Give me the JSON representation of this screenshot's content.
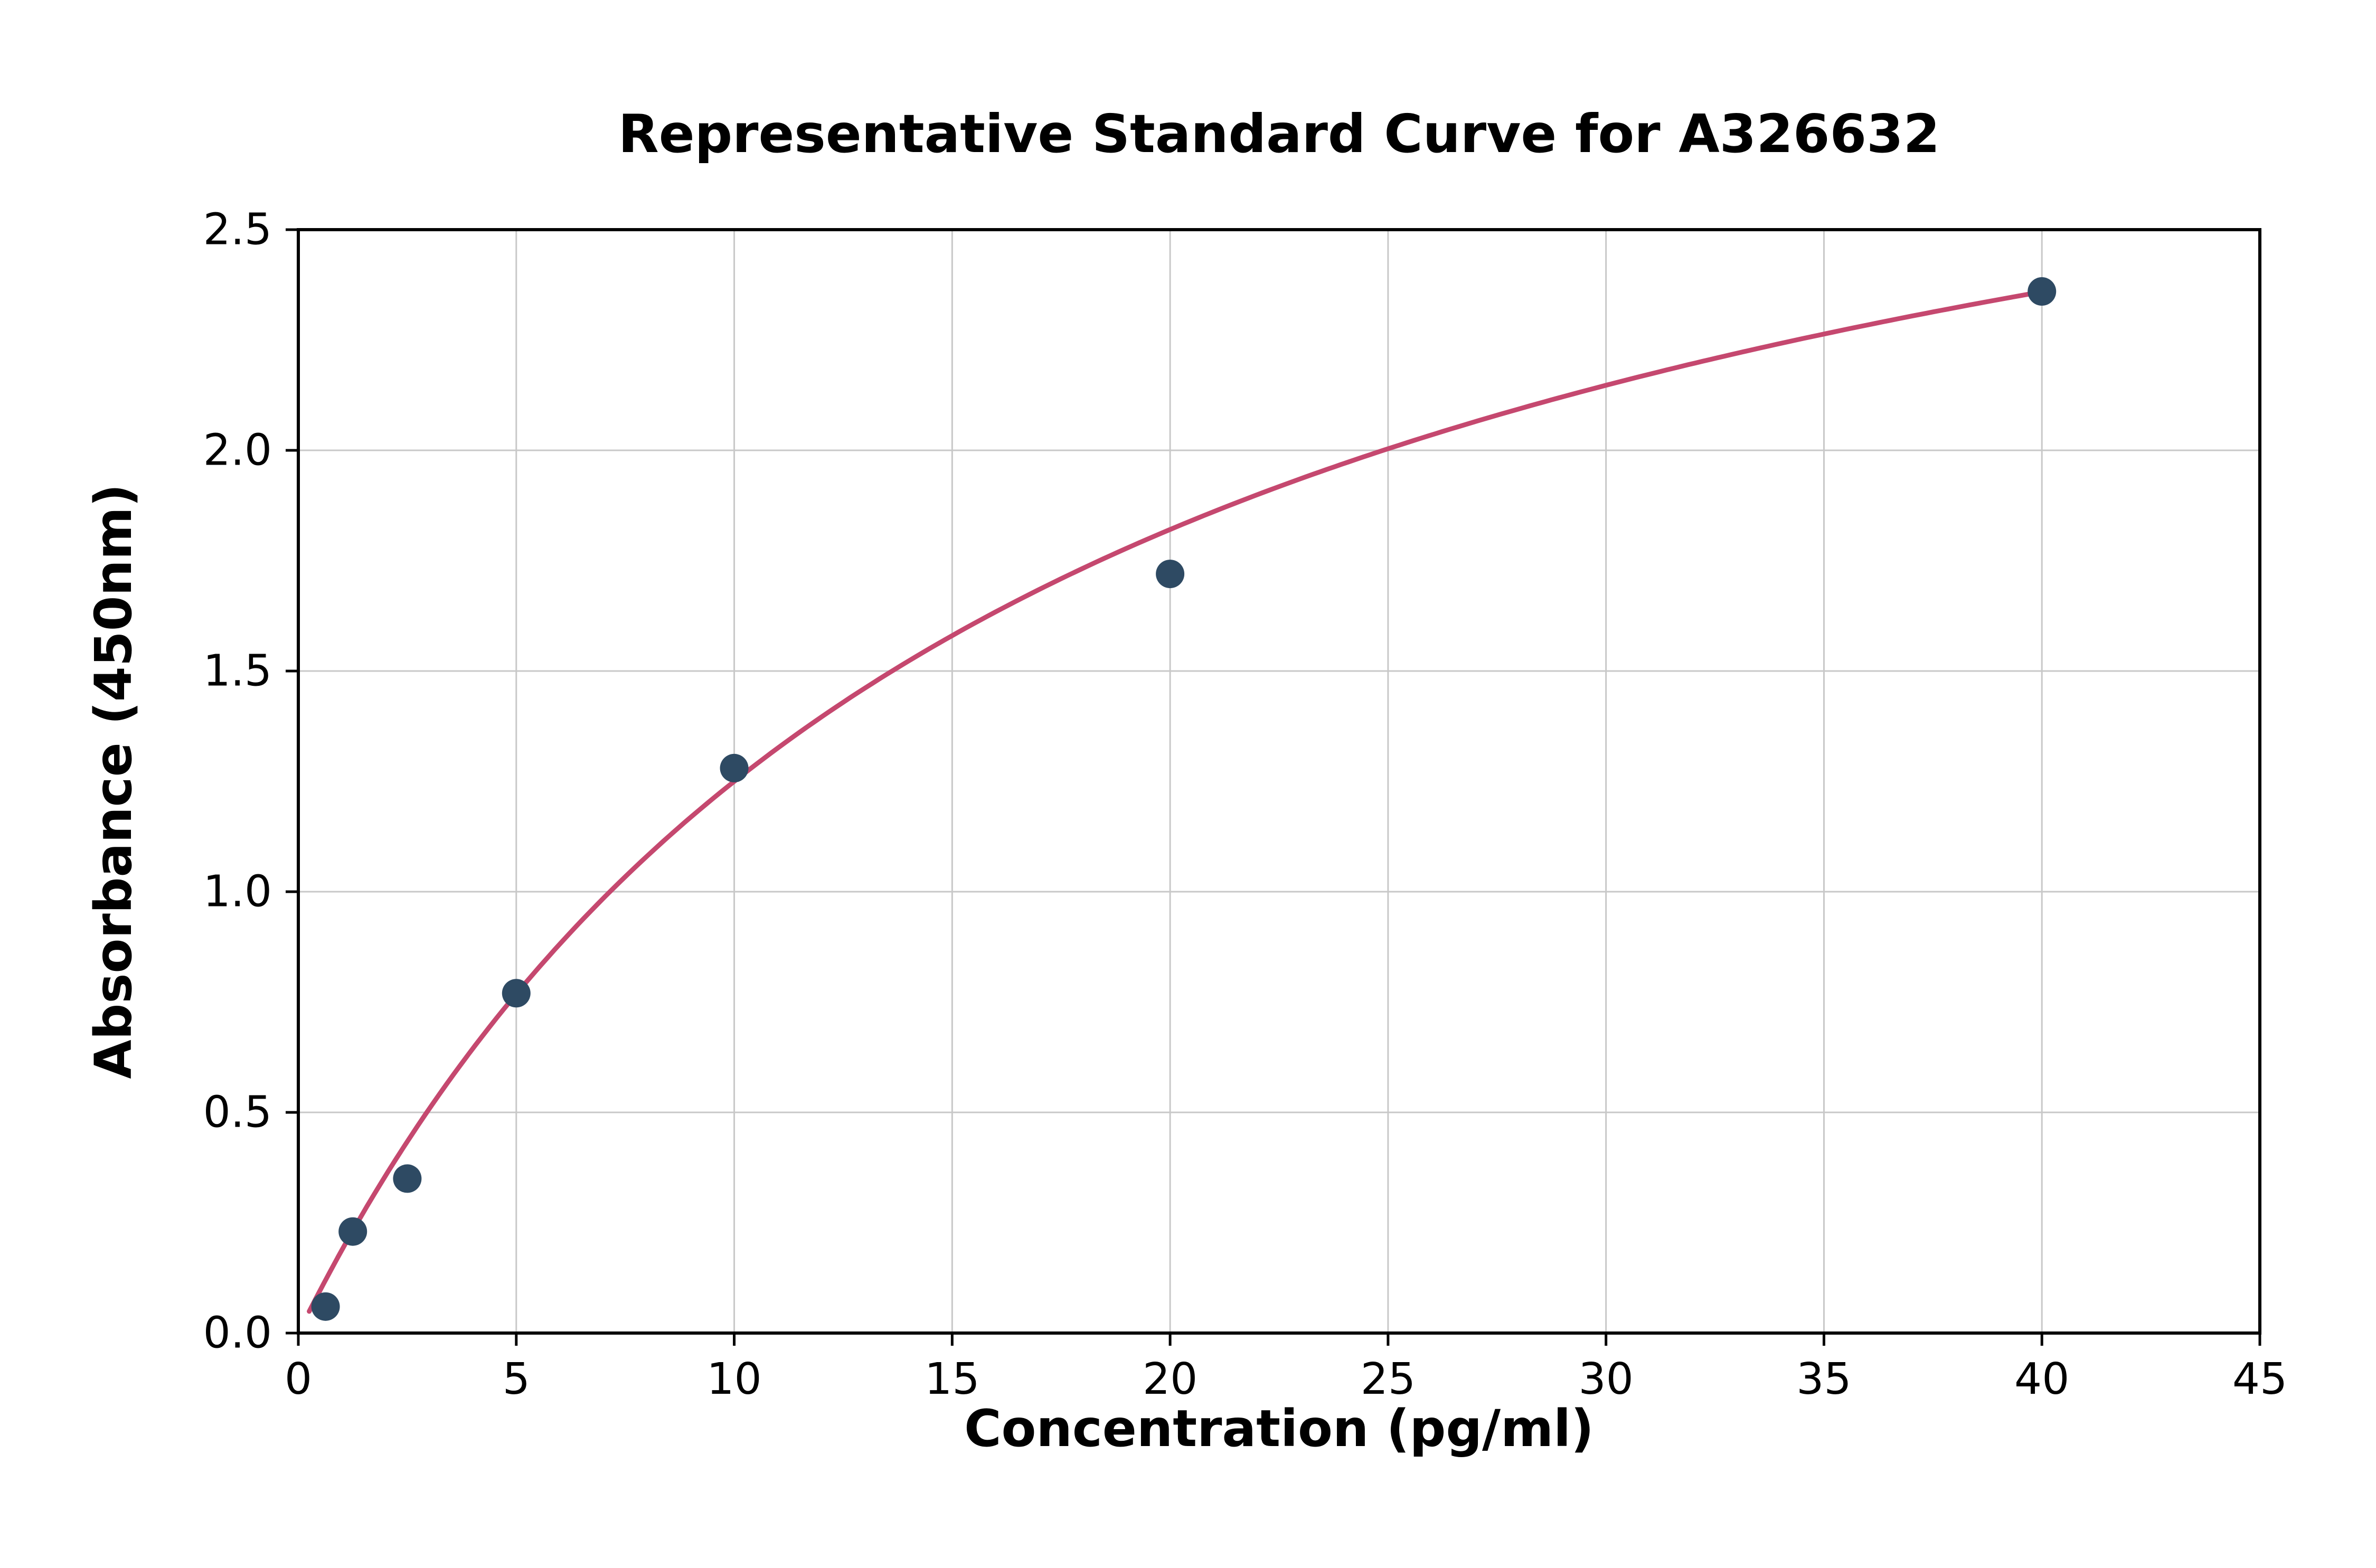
{
  "chart_data": {
    "type": "scatter",
    "title": "Representative Standard Curve for A326632",
    "xlabel": "Concentration (pg/ml)",
    "ylabel": "Absorbance (450nm)",
    "xlim": [
      0,
      45
    ],
    "ylim": [
      0,
      2.5
    ],
    "x_ticks": [
      0,
      5,
      10,
      15,
      20,
      25,
      30,
      35,
      40,
      45
    ],
    "x_tick_labels": [
      "0",
      "5",
      "10",
      "15",
      "20",
      "25",
      "30",
      "35",
      "40",
      "45"
    ],
    "y_ticks": [
      0.0,
      0.5,
      1.0,
      1.5,
      2.0,
      2.5
    ],
    "y_tick_labels": [
      "0.0",
      "0.5",
      "1.0",
      "1.5",
      "2.0",
      "2.5"
    ],
    "grid": true,
    "legend": "none",
    "points": {
      "x": [
        0.625,
        1.25,
        2.5,
        5,
        10,
        20,
        40
      ],
      "y": [
        0.06,
        0.23,
        0.35,
        0.77,
        1.28,
        1.72,
        2.36
      ]
    },
    "fit_curve": {
      "model": "michaelis-menten",
      "equation": "y = a*x/(b+x)",
      "a": 3.35,
      "b": 16.8,
      "x_start": 0.25,
      "x_end": 40
    },
    "colors": {
      "point": "#2e4a63",
      "curve": "#c5486f",
      "grid": "#c8c8c8",
      "axis": "#000000",
      "background": "#ffffff"
    }
  }
}
